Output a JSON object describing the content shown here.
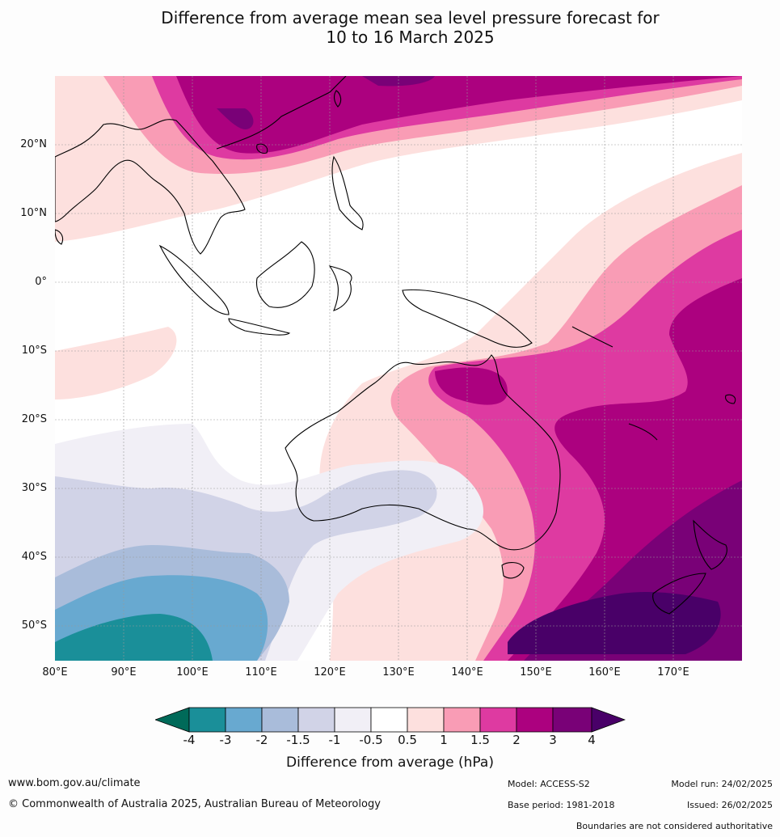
{
  "title": {
    "line1": "Difference from average mean sea level pressure forecast for",
    "line2": "10 to 16 March 2025"
  },
  "map": {
    "lat_labels": [
      "20°N",
      "10°N",
      "0°",
      "10°S",
      "20°S",
      "30°S",
      "40°S",
      "50°S"
    ],
    "lon_labels": [
      "80°E",
      "90°E",
      "100°E",
      "110°E",
      "120°E",
      "130°E",
      "140°E",
      "150°E",
      "160°E",
      "170°E"
    ],
    "extent": {
      "lon_min": 80,
      "lon_max": 180,
      "lat_min": -55,
      "lat_max": 30
    },
    "grid": true
  },
  "colorbar": {
    "title": "Difference from average (hPa)",
    "ticks": [
      "-4",
      "-3",
      "-2",
      "-1.5",
      "-1",
      "-0.5",
      "0.5",
      "1",
      "1.5",
      "2",
      "3",
      "4"
    ],
    "colors": {
      "below_-4": "#006a59",
      "-4_-3": "#1a8f99",
      "-3_-2": "#68a9d0",
      "-2_-1.5": "#a9bcda",
      "-1.5_-1": "#d1d3e7",
      "-1_-0.5": "#f1eff6",
      "-0.5_0.5": "#ffffff",
      "0.5_1": "#fde0de",
      "1_1.5": "#f99cb5",
      "1.5_2": "#de3aa1",
      "2_3": "#ac017f",
      "3_4": "#790177",
      "above_4": "#490068"
    }
  },
  "footer": {
    "url": "www.bom.gov.au/climate",
    "copyright": "© Commonwealth of Australia 2025, Australian Bureau of Meteorology",
    "model": "Model: ACCESS-S2",
    "base_period": "Base period: 1981-2018",
    "model_run": "Model run: 24/02/2025",
    "issued": "Issued: 26/02/2025",
    "boundaries": "Boundaries are not considered authoritative"
  }
}
